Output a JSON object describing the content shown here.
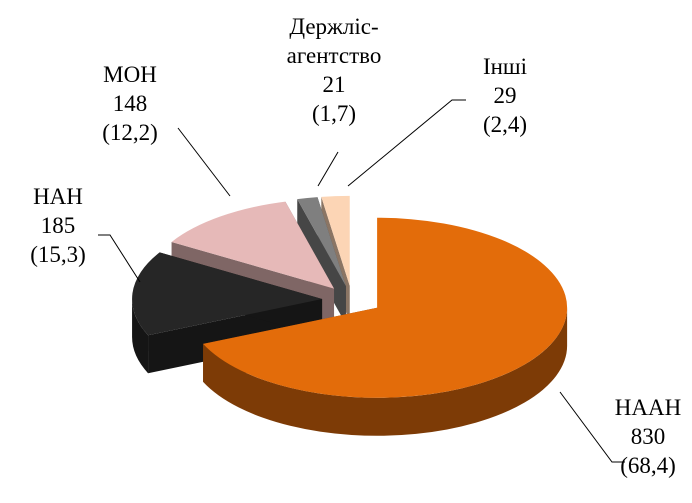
{
  "chart_data": {
    "type": "pie3d",
    "categories": [
      "НААН",
      "НАН",
      "МОН",
      "Держліс-\nагентство",
      "Інші"
    ],
    "values": [
      830,
      185,
      148,
      21,
      29
    ],
    "share_labels": [
      "(68,4)",
      "(15,3)",
      "(12,2)",
      "(1,7)",
      "(2,4)"
    ],
    "colors": [
      "#e36c0a",
      "#262626",
      "#e6b9b8",
      "#7f7f7f",
      "#fcd5b5"
    ]
  }
}
